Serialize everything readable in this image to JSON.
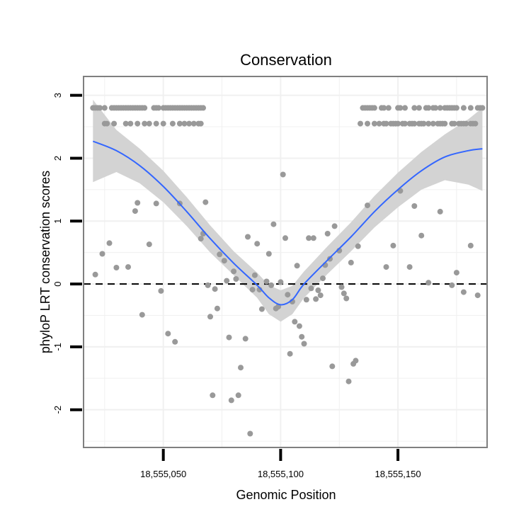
{
  "chart_data": {
    "type": "scatter",
    "title": "Conservation",
    "xlabel": "Genomic Position",
    "ylabel": "phyloP LRT conservation scores",
    "xlim": [
      18555016,
      18555188
    ],
    "ylim": [
      -2.6,
      3.3
    ],
    "x_ticks": [
      {
        "value": 18555050,
        "label": "18,555,050"
      },
      {
        "value": 18555100,
        "label": "18,555,100"
      },
      {
        "value": 18555150,
        "label": "18,555,150"
      }
    ],
    "y_ticks": [
      {
        "value": -2,
        "label": "-2"
      },
      {
        "value": -1,
        "label": "-1"
      },
      {
        "value": 0,
        "label": "0"
      },
      {
        "value": 1,
        "label": "1"
      },
      {
        "value": 2,
        "label": "2"
      },
      {
        "value": 3,
        "label": "3"
      }
    ],
    "reference_line": {
      "y": 0,
      "style": "dashed"
    },
    "colors": {
      "points": "#999999",
      "smooth": "#3366ff",
      "ribbon": "#d3d3d3",
      "grid": "#f0f0f0",
      "frame": "#7f7f7f"
    },
    "points": [
      [
        18555020,
        2.8
      ],
      [
        18555021,
        2.8
      ],
      [
        18555022,
        2.8
      ],
      [
        18555023,
        2.8
      ],
      [
        18555025,
        2.8
      ],
      [
        18555028,
        2.8
      ],
      [
        18555029,
        2.8
      ],
      [
        18555030,
        2.8
      ],
      [
        18555031,
        2.8
      ],
      [
        18555032,
        2.8
      ],
      [
        18555033,
        2.8
      ],
      [
        18555034,
        2.8
      ],
      [
        18555035,
        2.8
      ],
      [
        18555036,
        2.8
      ],
      [
        18555037,
        2.8
      ],
      [
        18555038,
        2.8
      ],
      [
        18555039,
        2.8
      ],
      [
        18555040,
        2.8
      ],
      [
        18555041,
        2.8
      ],
      [
        18555042,
        2.8
      ],
      [
        18555046,
        2.8
      ],
      [
        18555047,
        2.8
      ],
      [
        18555048,
        2.8
      ],
      [
        18555050,
        2.8
      ],
      [
        18555051,
        2.8
      ],
      [
        18555052,
        2.8
      ],
      [
        18555053,
        2.8
      ],
      [
        18555054,
        2.8
      ],
      [
        18555055,
        2.8
      ],
      [
        18555056,
        2.8
      ],
      [
        18555057,
        2.8
      ],
      [
        18555058,
        2.8
      ],
      [
        18555059,
        2.8
      ],
      [
        18555060,
        2.8
      ],
      [
        18555061,
        2.8
      ],
      [
        18555062,
        2.8
      ],
      [
        18555063,
        2.8
      ],
      [
        18555064,
        2.8
      ],
      [
        18555065,
        2.8
      ],
      [
        18555066,
        2.8
      ],
      [
        18555067,
        2.8
      ],
      [
        18555025,
        2.55
      ],
      [
        18555026,
        2.55
      ],
      [
        18555029,
        2.55
      ],
      [
        18555034,
        2.55
      ],
      [
        18555036,
        2.55
      ],
      [
        18555039,
        2.55
      ],
      [
        18555042,
        2.55
      ],
      [
        18555044,
        2.55
      ],
      [
        18555047,
        2.55
      ],
      [
        18555050,
        2.55
      ],
      [
        18555054,
        2.55
      ],
      [
        18555057,
        2.55
      ],
      [
        18555059,
        2.55
      ],
      [
        18555061,
        2.55
      ],
      [
        18555063,
        2.55
      ],
      [
        18555065,
        2.55
      ],
      [
        18555066,
        2.55
      ],
      [
        18555135,
        2.8
      ],
      [
        18555136,
        2.8
      ],
      [
        18555137,
        2.8
      ],
      [
        18555138,
        2.8
      ],
      [
        18555139,
        2.8
      ],
      [
        18555140,
        2.8
      ],
      [
        18555143,
        2.8
      ],
      [
        18555144,
        2.8
      ],
      [
        18555146,
        2.8
      ],
      [
        18555150,
        2.8
      ],
      [
        18555151,
        2.8
      ],
      [
        18555153,
        2.8
      ],
      [
        18555157,
        2.8
      ],
      [
        18555159,
        2.8
      ],
      [
        18555162,
        2.8
      ],
      [
        18555163,
        2.8
      ],
      [
        18555165,
        2.8
      ],
      [
        18555166,
        2.8
      ],
      [
        18555168,
        2.8
      ],
      [
        18555170,
        2.8
      ],
      [
        18555171,
        2.8
      ],
      [
        18555172,
        2.8
      ],
      [
        18555173,
        2.8
      ],
      [
        18555174,
        2.8
      ],
      [
        18555175,
        2.8
      ],
      [
        18555178,
        2.8
      ],
      [
        18555181,
        2.8
      ],
      [
        18555184,
        2.8
      ],
      [
        18555185,
        2.8
      ],
      [
        18555186,
        2.8
      ],
      [
        18555134,
        2.55
      ],
      [
        18555137,
        2.55
      ],
      [
        18555140,
        2.55
      ],
      [
        18555142,
        2.55
      ],
      [
        18555144,
        2.55
      ],
      [
        18555145,
        2.55
      ],
      [
        18555147,
        2.55
      ],
      [
        18555148,
        2.55
      ],
      [
        18555149,
        2.55
      ],
      [
        18555150,
        2.55
      ],
      [
        18555152,
        2.55
      ],
      [
        18555153,
        2.55
      ],
      [
        18555155,
        2.55
      ],
      [
        18555156,
        2.55
      ],
      [
        18555157,
        2.55
      ],
      [
        18555159,
        2.55
      ],
      [
        18555160,
        2.55
      ],
      [
        18555161,
        2.55
      ],
      [
        18555163,
        2.55
      ],
      [
        18555165,
        2.55
      ],
      [
        18555167,
        2.55
      ],
      [
        18555168,
        2.55
      ],
      [
        18555169,
        2.55
      ],
      [
        18555170,
        2.55
      ],
      [
        18555173,
        2.55
      ],
      [
        18555174,
        2.55
      ],
      [
        18555176,
        2.55
      ],
      [
        18555177,
        2.55
      ],
      [
        18555178,
        2.55
      ],
      [
        18555179,
        2.55
      ],
      [
        18555181,
        2.55
      ],
      [
        18555182,
        2.55
      ],
      [
        18555183,
        2.55
      ],
      [
        18555021,
        0.15
      ],
      [
        18555024,
        0.48
      ],
      [
        18555027,
        0.65
      ],
      [
        18555030,
        0.26
      ],
      [
        18555035,
        0.27
      ],
      [
        18555038,
        1.16
      ],
      [
        18555039,
        1.29
      ],
      [
        18555041,
        -0.49
      ],
      [
        18555044,
        0.63
      ],
      [
        18555047,
        1.28
      ],
      [
        18555049,
        -0.11
      ],
      [
        18555052,
        -0.79
      ],
      [
        18555055,
        -0.92
      ],
      [
        18555057,
        1.28
      ],
      [
        18555066,
        0.72
      ],
      [
        18555067,
        0.8
      ],
      [
        18555068,
        1.3
      ],
      [
        18555069,
        -0.02
      ],
      [
        18555070,
        -0.52
      ],
      [
        18555071,
        -1.77
      ],
      [
        18555072,
        -0.08
      ],
      [
        18555073,
        -0.39
      ],
      [
        18555074,
        0.47
      ],
      [
        18555076,
        0.37
      ],
      [
        18555077,
        0.05
      ],
      [
        18555078,
        -0.85
      ],
      [
        18555079,
        -1.85
      ],
      [
        18555080,
        0.2
      ],
      [
        18555081,
        0.08
      ],
      [
        18555082,
        -1.77
      ],
      [
        18555083,
        -1.33
      ],
      [
        18555085,
        -0.87
      ],
      [
        18555086,
        0.75
      ],
      [
        18555087,
        -2.38
      ],
      [
        18555088,
        -0.09
      ],
      [
        18555089,
        0.14
      ],
      [
        18555090,
        0.64
      ],
      [
        18555091,
        -0.09
      ],
      [
        18555092,
        -0.4
      ],
      [
        18555094,
        0.04
      ],
      [
        18555095,
        0.48
      ],
      [
        18555096,
        -0.02
      ],
      [
        18555097,
        0.95
      ],
      [
        18555098,
        -0.39
      ],
      [
        18555099,
        -0.36
      ],
      [
        18555100,
        0.03
      ],
      [
        18555101,
        1.74
      ],
      [
        18555102,
        0.73
      ],
      [
        18555103,
        -0.17
      ],
      [
        18555104,
        -1.11
      ],
      [
        18555105,
        -0.28
      ],
      [
        18555106,
        -0.6
      ],
      [
        18555107,
        0.29
      ],
      [
        18555108,
        -0.67
      ],
      [
        18555109,
        -0.84
      ],
      [
        18555110,
        -0.95
      ],
      [
        18555111,
        -0.25
      ],
      [
        18555112,
        0.73
      ],
      [
        18555113,
        -0.07
      ],
      [
        18555114,
        0.73
      ],
      [
        18555115,
        -0.24
      ],
      [
        18555116,
        -0.1
      ],
      [
        18555117,
        -0.18
      ],
      [
        18555118,
        0.09
      ],
      [
        18555119,
        0.3
      ],
      [
        18555120,
        0.8
      ],
      [
        18555121,
        0.4
      ],
      [
        18555122,
        -1.31
      ],
      [
        18555123,
        0.92
      ],
      [
        18555125,
        0.53
      ],
      [
        18555126,
        -0.05
      ],
      [
        18555127,
        -0.15
      ],
      [
        18555128,
        -0.23
      ],
      [
        18555129,
        -1.55
      ],
      [
        18555130,
        0.34
      ],
      [
        18555131,
        -1.27
      ],
      [
        18555132,
        -1.22
      ],
      [
        18555133,
        0.6
      ],
      [
        18555137,
        1.25
      ],
      [
        18555145,
        0.27
      ],
      [
        18555148,
        0.61
      ],
      [
        18555151,
        1.48
      ],
      [
        18555155,
        0.27
      ],
      [
        18555157,
        1.24
      ],
      [
        18555160,
        0.77
      ],
      [
        18555163,
        0.02
      ],
      [
        18555168,
        1.15
      ],
      [
        18555173,
        -0.02
      ],
      [
        18555175,
        0.18
      ],
      [
        18555178,
        -0.13
      ],
      [
        18555181,
        0.61
      ],
      [
        18555184,
        -0.18
      ]
    ],
    "smooth": [
      [
        18555020,
        2.27
      ],
      [
        18555030,
        2.12
      ],
      [
        18555040,
        1.88
      ],
      [
        18555050,
        1.55
      ],
      [
        18555060,
        1.15
      ],
      [
        18555070,
        0.72
      ],
      [
        18555080,
        0.33
      ],
      [
        18555090,
        -0.02
      ],
      [
        18555095,
        -0.22
      ],
      [
        18555100,
        -0.33
      ],
      [
        18555105,
        -0.25
      ],
      [
        18555110,
        0.0
      ],
      [
        18555120,
        0.38
      ],
      [
        18555130,
        0.75
      ],
      [
        18555140,
        1.15
      ],
      [
        18555150,
        1.5
      ],
      [
        18555160,
        1.8
      ],
      [
        18555170,
        2.02
      ],
      [
        18555180,
        2.12
      ],
      [
        18555186,
        2.15
      ]
    ],
    "ribbon_upper": [
      2.93,
      2.45,
      2.15,
      1.8,
      1.38,
      0.93,
      0.52,
      0.18,
      -0.02,
      -0.1,
      -0.03,
      0.2,
      0.6,
      0.98,
      1.4,
      1.77,
      2.1,
      2.38,
      2.62,
      2.8
    ],
    "ribbon_lower": [
      1.62,
      1.78,
      1.6,
      1.3,
      0.92,
      0.5,
      0.14,
      -0.22,
      -0.48,
      -0.6,
      -0.48,
      -0.22,
      0.16,
      0.52,
      0.9,
      1.22,
      1.5,
      1.65,
      1.58,
      1.48
    ]
  }
}
